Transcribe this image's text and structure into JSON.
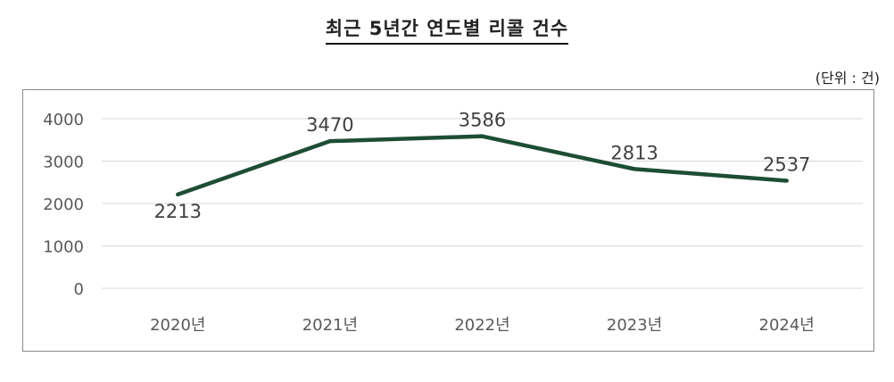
{
  "title": "최근 5년간 연도별 리콜 건수",
  "unit": "(단위 : 건)",
  "colors": {
    "line": "#1e4d36",
    "grid": "#d9d9d9",
    "border": "#8a8a8a"
  },
  "chart_data": {
    "type": "line",
    "categories": [
      "2020년",
      "2021년",
      "2022년",
      "2023년",
      "2024년"
    ],
    "series": [
      {
        "values": [
          2213,
          3470,
          3586,
          2813,
          2537
        ]
      }
    ],
    "ylim": [
      0,
      4000
    ],
    "yticks": [
      0,
      1000,
      2000,
      3000,
      4000
    ],
    "grid": true,
    "legend": "none"
  }
}
